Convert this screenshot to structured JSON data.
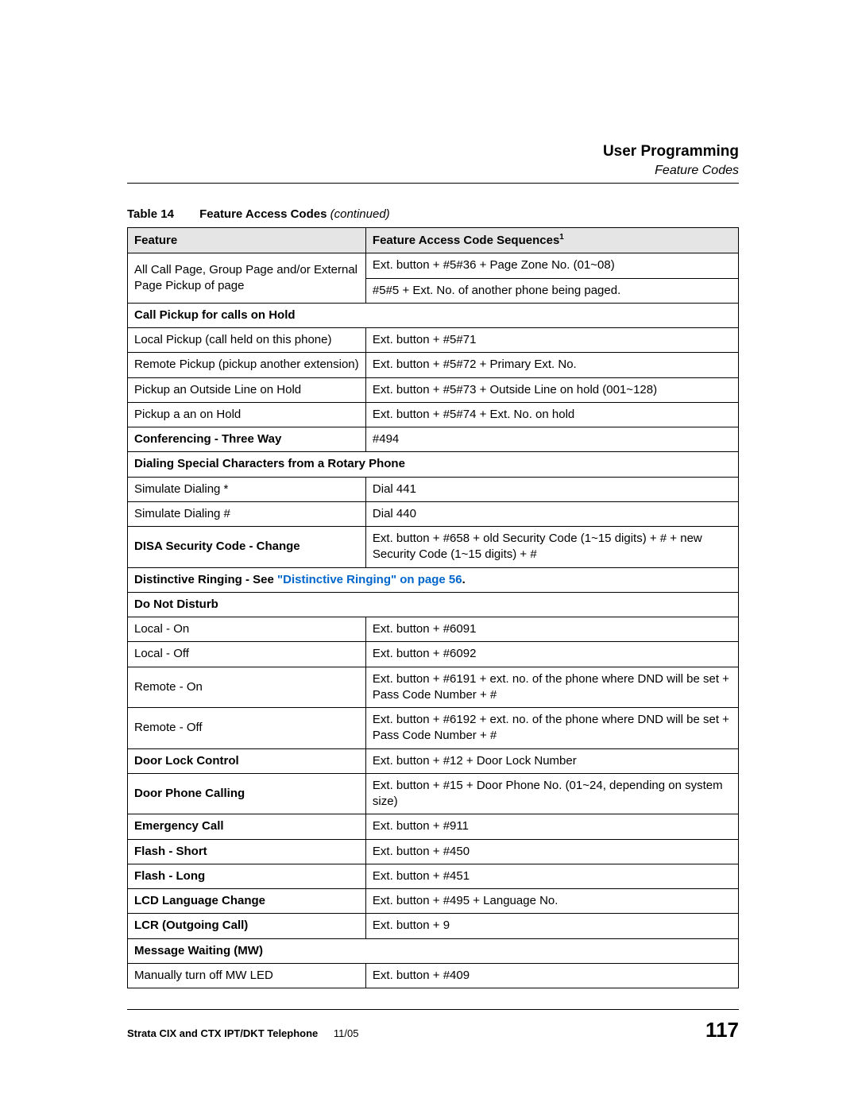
{
  "header": {
    "chapter": "User Programming",
    "section": "Feature Codes"
  },
  "tableCaption": {
    "number": "Table 14",
    "title": "Feature Access Codes ",
    "continued": "(continued)"
  },
  "columns": {
    "c1": "Feature",
    "c2_prefix": "Feature Access Code Sequences",
    "c2_sup": "1"
  },
  "rows": {
    "r1a_f": "All Call Page, Group Page and/or External Page Pickup of page",
    "r1a_c": "Ext. button + #5#36 + Page Zone No. (01~08)",
    "r1b_c": "#5#5 + Ext. No. of another phone being paged.",
    "s_callpickup": "Call Pickup for calls on Hold",
    "r2_f": "Local Pickup (call held on this phone)",
    "r2_c": "Ext. button + #5#71",
    "r3_f": "Remote Pickup (pickup another extension)",
    "r3_c": "Ext. button + #5#72 + Primary Ext. No.",
    "r4_f": "Pickup an Outside Line on Hold",
    "r4_c": "Ext. button + #5#73 + Outside Line on hold (001~128)",
    "r5_f": "Pickup a an on Hold",
    "r5_c": "Ext. button + #5#74 + Ext. No. on hold",
    "r6_f": "Conferencing - Three Way",
    "r6_c": "#494",
    "s_dialspecial": "Dialing Special Characters from a Rotary Phone",
    "r7_f": "Simulate Dialing *",
    "r7_c": "Dial 441",
    "r8_f": "Simulate Dialing #",
    "r8_c": "Dial 440",
    "r9_f": "DISA Security Code - Change",
    "r9_c": "Ext. button + #658 + old Security Code (1~15 digits) + # + new Security Code (1~15 digits) + #",
    "r10_pre": "Distinctive Ringing - See ",
    "r10_link": "\"Distinctive Ringing\" on page 56",
    "r10_post": ".",
    "s_dnd": "Do Not Disturb",
    "r11_f": "Local - On",
    "r11_c": "Ext. button + #6091",
    "r12_f": "Local - Off",
    "r12_c": "Ext. button + #6092",
    "r13_f": "Remote - On",
    "r13_c": "Ext. button + #6191 + ext. no. of the phone where DND will be set + Pass Code Number + #",
    "r14_f": "Remote - Off",
    "r14_c": "Ext. button + #6192 + ext. no. of the phone where DND will be set + Pass Code Number + #",
    "r15_f": "Door Lock Control",
    "r15_c": "Ext. button + #12 + Door Lock Number",
    "r16_f": "Door Phone Calling",
    "r16_c": "Ext. button + #15 + Door Phone No. (01~24, depending on system size)",
    "r17_f": "Emergency Call",
    "r17_c": "Ext. button + #911",
    "r18_f": "Flash - Short",
    "r18_c": "Ext. button + #450",
    "r19_f": "Flash - Long",
    "r19_c": "Ext. button + #451",
    "r20_f": "LCD Language Change",
    "r20_c": "Ext. button + #495 + Language No.",
    "r21_f": "LCR (Outgoing Call)",
    "r21_c": "Ext. button + 9",
    "s_mw": "Message Waiting (MW)",
    "r22_f": "Manually turn off MW LED",
    "r22_c": "Ext. button + #409"
  },
  "footer": {
    "doc": "Strata CIX and CTX IPT/DKT Telephone",
    "date": "11/05",
    "page": "117"
  }
}
